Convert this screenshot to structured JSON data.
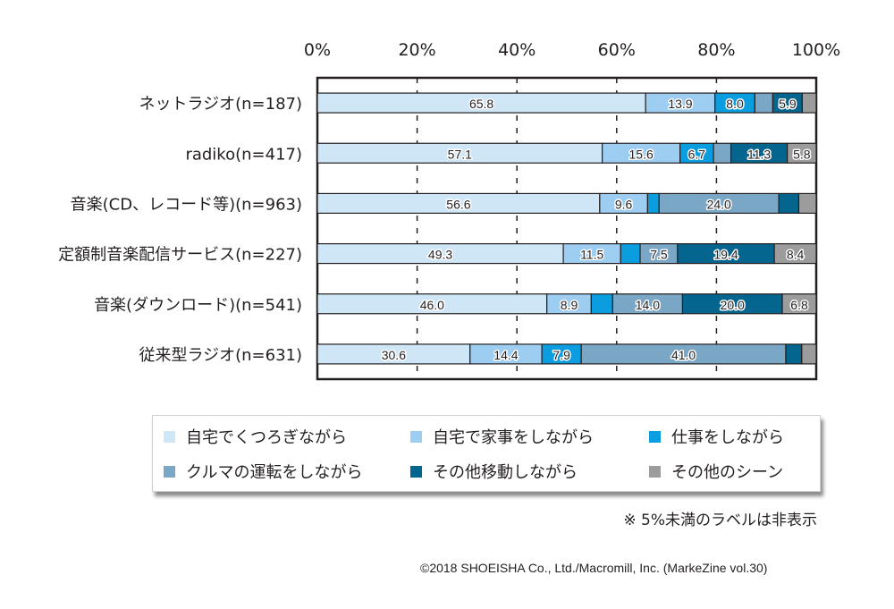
{
  "chart_data": {
    "type": "bar",
    "orientation": "horizontal",
    "stacked": true,
    "percent": true,
    "title": "",
    "xlabel": "",
    "ylabel": "",
    "xlim": [
      0,
      100
    ],
    "x_ticks": [
      "0%",
      "20%",
      "40%",
      "60%",
      "80%",
      "100%"
    ],
    "grid": true,
    "legend_position": "bottom",
    "categories": [
      "ネットラジオ(n=187)",
      "radiko(n=417)",
      "音楽(CD、レコード等)(n=963)",
      "定額制音楽配信サービス(n=227)",
      "音楽(ダウンロード)(n=541)",
      "従来型ラジオ(n=631)"
    ],
    "series": [
      {
        "name": "自宅でくつろぎながら",
        "color": "#cfe6f7",
        "values": [
          65.8,
          57.1,
          56.6,
          49.3,
          46.0,
          30.6
        ]
      },
      {
        "name": "自宅で家事をしながら",
        "color": "#9dcdf0",
        "values": [
          13.9,
          15.6,
          9.6,
          11.5,
          8.9,
          14.4
        ]
      },
      {
        "name": "仕事をしながら",
        "color": "#0a9de0",
        "values": [
          8.0,
          6.7,
          2.3,
          3.9,
          4.3,
          7.9
        ]
      },
      {
        "name": "クルマの運転をしながら",
        "color": "#7ba7c7",
        "values": [
          3.6,
          3.5,
          24.0,
          7.5,
          14.0,
          41.0
        ]
      },
      {
        "name": "その他移動しながら",
        "color": "#04658e",
        "values": [
          5.9,
          11.3,
          4.0,
          19.4,
          20.0,
          3.2
        ]
      },
      {
        "name": "その他のシーン",
        "color": "#9c9c9c",
        "values": [
          2.8,
          5.8,
          3.5,
          8.4,
          6.8,
          2.9
        ]
      }
    ],
    "label_threshold": 5,
    "annotations": [
      "※ 5%未満のラベルは非表示"
    ]
  },
  "note": "※ 5%未満のラベルは非表示",
  "footer": "©2018 SHOEISHA Co., Ltd./Macromill, Inc. (MarkeZine vol.30)"
}
